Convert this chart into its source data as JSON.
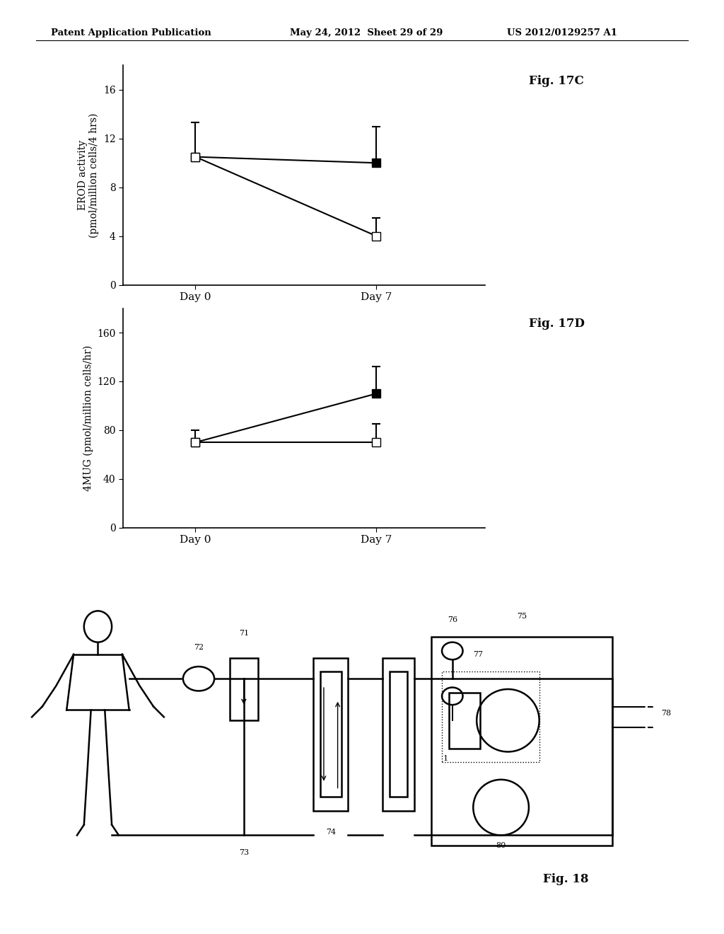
{
  "header_left": "Patent Application Publication",
  "header_mid": "May 24, 2012  Sheet 29 of 29",
  "header_right": "US 2012/0129257 A1",
  "fig17c_label": "Fig. 17C",
  "fig17c_ylabel": "EROD activity\n(pmol/million cells/4 hrs)",
  "fig17c_xlabel_day0": "Day 0",
  "fig17c_xlabel_day7": "Day 7",
  "fig17c_yticks": [
    0,
    4,
    8,
    12,
    16
  ],
  "fig17c_ylim": [
    0,
    18
  ],
  "fig17c_filled_day0": 10.5,
  "fig17c_filled_day7": 10.0,
  "fig17c_open_day0": 10.5,
  "fig17c_open_day7": 4.0,
  "fig17c_filled_err_day0_up": 2.8,
  "fig17c_filled_err_day0_dn": 0,
  "fig17c_filled_err_day7_up": 3.0,
  "fig17c_filled_err_day7_dn": 0,
  "fig17c_open_err_day0_up": 0,
  "fig17c_open_err_day0_dn": 0,
  "fig17c_open_err_day7_up": 1.5,
  "fig17c_open_err_day7_dn": 0,
  "fig17d_label": "Fig. 17D",
  "fig17d_ylabel": "4MUG (pmol/million cells/hr)",
  "fig17d_xlabel_day0": "Day 0",
  "fig17d_xlabel_day7": "Day 7",
  "fig17d_yticks": [
    0,
    40,
    80,
    120,
    160
  ],
  "fig17d_ylim": [
    0,
    180
  ],
  "fig17d_filled_day0": 70.0,
  "fig17d_filled_day7": 110.0,
  "fig17d_open_day0": 70.0,
  "fig17d_open_day7": 70.0,
  "fig17d_filled_err_day0_up": 10.0,
  "fig17d_filled_err_day0_dn": 0,
  "fig17d_filled_err_day7_up": 22.0,
  "fig17d_filled_err_day7_dn": 0,
  "fig17d_open_err_day0_up": 0,
  "fig17d_open_err_day0_dn": 0,
  "fig17d_open_err_day7_up": 15.0,
  "fig17d_open_err_day7_dn": 0,
  "fig18_label": "Fig. 18",
  "bg_color": "#ffffff",
  "line_color": "#000000"
}
